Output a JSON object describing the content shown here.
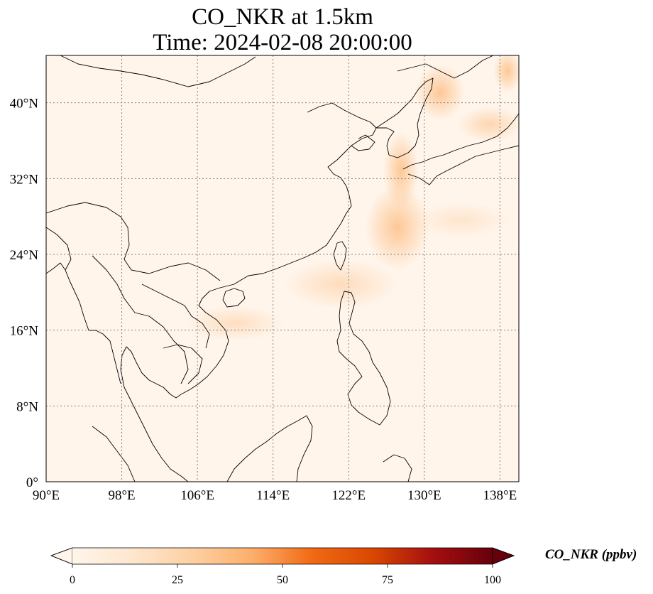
{
  "title": {
    "line1": "CO_NKR at 1.5km",
    "line2": "Time: 2024-02-08 20:00:00"
  },
  "map": {
    "lon_range": [
      90,
      140
    ],
    "lat_range": [
      0,
      45
    ],
    "lon_ticks": [
      {
        "value": 90,
        "label": "90°E"
      },
      {
        "value": 98,
        "label": "98°E"
      },
      {
        "value": 106,
        "label": "106°E"
      },
      {
        "value": 114,
        "label": "114°E"
      },
      {
        "value": 122,
        "label": "122°E"
      },
      {
        "value": 130,
        "label": "130°E"
      },
      {
        "value": 138,
        "label": "138°E"
      }
    ],
    "lat_ticks": [
      {
        "value": 0,
        "label": "0°"
      },
      {
        "value": 8,
        "label": "8°N"
      },
      {
        "value": 16,
        "label": "16°N"
      },
      {
        "value": 24,
        "label": "24°N"
      },
      {
        "value": 32,
        "label": "32°N"
      },
      {
        "value": 40,
        "label": "40°N"
      }
    ],
    "gridlines": true,
    "background_color": "#fff5eb",
    "plume_color": "#fdbf86",
    "coastline_color": "#000000",
    "grid_color": "#808080"
  },
  "colorbar": {
    "label": "CO_NKR (ppbv)",
    "min": 0,
    "max": 100,
    "extend": "both",
    "colormap": "OrRd",
    "ticks": [
      {
        "value": 0,
        "label": "0"
      },
      {
        "value": 25,
        "label": "25"
      },
      {
        "value": 50,
        "label": "50"
      },
      {
        "value": 75,
        "label": "75"
      },
      {
        "value": 100,
        "label": "100"
      }
    ],
    "stops": [
      "#fff5eb",
      "#fee6ce",
      "#fdd0a2",
      "#fdae6b",
      "#f16913",
      "#d94801",
      "#a50f0f",
      "#67000d"
    ]
  }
}
